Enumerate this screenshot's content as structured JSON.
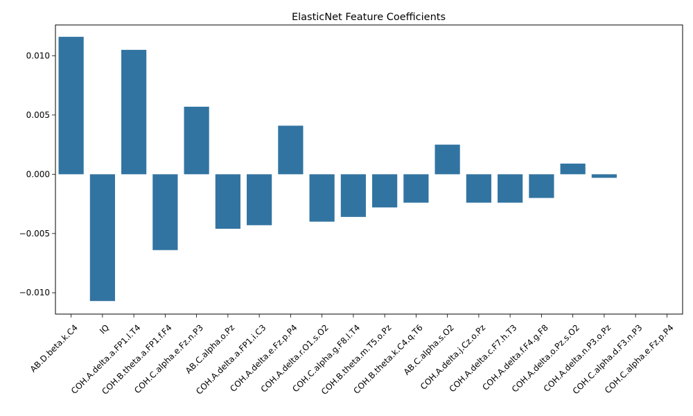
{
  "chart_data": {
    "type": "bar",
    "title": "ElasticNet Feature Coefficients",
    "xlabel": "",
    "ylabel": "",
    "ylim": [
      -0.0118,
      0.0126
    ],
    "yticks": [
      -0.01,
      -0.005,
      0.0,
      0.005,
      0.01
    ],
    "ytick_labels": [
      "−0.010",
      "−0.005",
      "0.000",
      "0.005",
      "0.010"
    ],
    "grid": false,
    "bar_color": "#3274a1",
    "categories": [
      "AB.D.beta.k.C4",
      "IQ",
      "COH.A.delta.a.FP1.l.T4",
      "COH.B.theta.a.FP1.f.F4",
      "COH.C.alpha.e.Fz.n.P3",
      "AB.C.alpha.o.Pz",
      "COH.A.delta.a.FP1.i.C3",
      "COH.A.delta.e.Fz.p.P4",
      "COH.A.delta.r.O1.s.O2",
      "COH.C.alpha.g.F8.l.T4",
      "COH.B.theta.m.T5.o.Pz",
      "COH.B.theta.k.C4.q.T6",
      "AB.C.alpha.s.O2",
      "COH.A.delta.j.Cz.o.Pz",
      "COH.A.delta.c.F7.h.T3",
      "COH.A.delta.f.F4.g.F8",
      "COH.A.delta.o.Pz.s.O2",
      "COH.A.delta.n.P3.o.Pz",
      "COH.C.alpha.d.F3.n.P3",
      "COH.C.alpha.e.Fz.p.P4"
    ],
    "values": [
      0.0116,
      -0.0107,
      0.0105,
      -0.0064,
      0.0057,
      -0.0046,
      -0.0043,
      0.0041,
      -0.004,
      -0.0036,
      -0.0028,
      -0.0024,
      0.0025,
      -0.0024,
      -0.0024,
      -0.002,
      0.0009,
      -0.0003,
      0.0,
      0.0
    ]
  }
}
